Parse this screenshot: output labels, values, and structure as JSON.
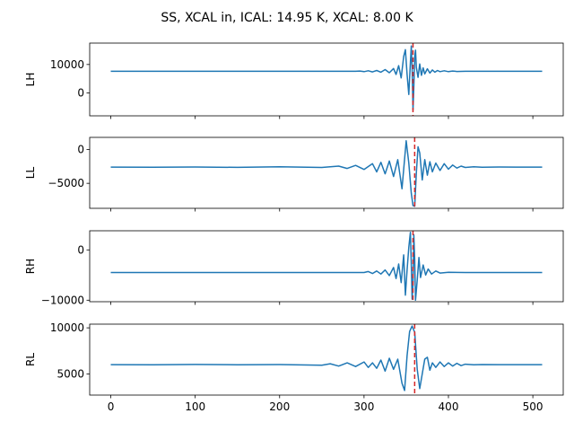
{
  "figure": {
    "title": "SS, XCAL in, ICAL: 14.95 K, XCAL: 8.00 K"
  },
  "chart_data": [
    {
      "type": "line",
      "ylabel": "LH",
      "xlim": [
        -25,
        536
      ],
      "ylim": [
        -8000,
        17500
      ],
      "yticks": [
        0,
        10000
      ],
      "show_xticklabels": false,
      "baseline": 7600,
      "vline_x": 358,
      "line_color": "#1f77b4",
      "vline_color": "#d62728",
      "x": [
        0,
        50,
        100,
        150,
        200,
        250,
        290,
        295,
        300,
        305,
        310,
        315,
        320,
        325,
        330,
        335,
        338,
        341,
        344,
        347,
        349,
        351,
        353,
        355,
        356,
        357,
        358,
        359,
        360,
        361,
        362,
        364,
        366,
        368,
        370,
        372,
        375,
        378,
        381,
        384,
        387,
        390,
        395,
        400,
        405,
        410,
        420,
        440,
        480,
        511
      ],
      "y": [
        7600,
        7600,
        7600,
        7600,
        7600,
        7600,
        7600,
        7700,
        7500,
        7800,
        7400,
        7900,
        7300,
        8200,
        7100,
        8600,
        6500,
        9600,
        5300,
        12800,
        15200,
        6500,
        -500,
        10800,
        16500,
        8500,
        -6000,
        2000,
        13000,
        15000,
        9000,
        5500,
        10200,
        6200,
        8800,
        6700,
        8500,
        7000,
        8100,
        7300,
        7900,
        7500,
        7800,
        7500,
        7700,
        7550,
        7600,
        7600,
        7600,
        7600
      ]
    },
    {
      "type": "line",
      "ylabel": "LL",
      "xlim": [
        -25,
        536
      ],
      "ylim": [
        -8700,
        1800
      ],
      "yticks": [
        -5000,
        0
      ],
      "show_xticklabels": false,
      "baseline": -2600,
      "vline_x": 360,
      "line_color": "#1f77b4",
      "vline_color": "#d62728",
      "x": [
        0,
        50,
        100,
        150,
        200,
        250,
        270,
        280,
        290,
        300,
        310,
        315,
        320,
        325,
        330,
        335,
        340,
        345,
        350,
        353,
        356,
        358,
        360,
        362,
        364,
        366,
        369,
        372,
        375,
        378,
        381,
        385,
        390,
        395,
        400,
        405,
        410,
        415,
        420,
        430,
        440,
        460,
        480,
        511
      ],
      "y": [
        -2600,
        -2620,
        -2580,
        -2640,
        -2560,
        -2650,
        -2450,
        -2800,
        -2350,
        -2950,
        -2100,
        -3300,
        -1900,
        -3600,
        -1700,
        -4000,
        -1500,
        -5800,
        1300,
        -2000,
        -6500,
        -8300,
        -8400,
        -3500,
        400,
        -500,
        -4500,
        -1500,
        -3800,
        -1800,
        -3300,
        -2000,
        -3100,
        -2100,
        -2900,
        -2300,
        -2750,
        -2450,
        -2650,
        -2550,
        -2620,
        -2580,
        -2600,
        -2600
      ]
    },
    {
      "type": "line",
      "ylabel": "RH",
      "xlim": [
        -25,
        536
      ],
      "ylim": [
        -10300,
        3800
      ],
      "yticks": [
        -10000,
        0
      ],
      "show_xticklabels": false,
      "baseline": -4500,
      "vline_x": 358,
      "line_color": "#1f77b4",
      "vline_color": "#d62728",
      "x": [
        0,
        50,
        100,
        150,
        200,
        250,
        300,
        305,
        310,
        315,
        320,
        325,
        330,
        335,
        338,
        341,
        344,
        347,
        349,
        351,
        353,
        355,
        356,
        357,
        358,
        359,
        360,
        361,
        363,
        365,
        367,
        370,
        373,
        376,
        380,
        385,
        390,
        400,
        420,
        460,
        511
      ],
      "y": [
        -4500,
        -4500,
        -4500,
        -4500,
        -4500,
        -4500,
        -4500,
        -4300,
        -4700,
        -4200,
        -4800,
        -4000,
        -5100,
        -3500,
        -5700,
        -2800,
        -6500,
        -1000,
        -9000,
        -4000,
        500,
        3500,
        -3000,
        -9800,
        -7000,
        3000,
        -2000,
        -10000,
        -6000,
        -1500,
        -5500,
        -3000,
        -5000,
        -3800,
        -4800,
        -4200,
        -4600,
        -4450,
        -4500,
        -4500,
        -4500
      ]
    },
    {
      "type": "line",
      "ylabel": "RL",
      "xlim": [
        -25,
        536
      ],
      "ylim": [
        2700,
        10400
      ],
      "yticks": [
        5000,
        10000
      ],
      "show_xticklabels": true,
      "xticks": [
        0,
        100,
        200,
        300,
        400,
        500
      ],
      "baseline": 6000,
      "vline_x": 360,
      "line_color": "#1f77b4",
      "vline_color": "#d62728",
      "x": [
        0,
        50,
        100,
        150,
        200,
        250,
        260,
        270,
        280,
        290,
        300,
        305,
        310,
        315,
        320,
        325,
        330,
        335,
        340,
        345,
        348,
        351,
        354,
        357,
        360,
        363,
        366,
        369,
        372,
        375,
        378,
        381,
        385,
        390,
        395,
        400,
        405,
        410,
        415,
        420,
        430,
        440,
        460,
        480,
        511
      ],
      "y": [
        6000,
        5980,
        6020,
        5990,
        6010,
        5950,
        6100,
        5850,
        6200,
        5800,
        6300,
        5700,
        6200,
        5600,
        6500,
        5300,
        6700,
        5500,
        6600,
        4000,
        3200,
        7000,
        9600,
        10200,
        9500,
        5500,
        3400,
        5000,
        6600,
        6800,
        5400,
        6200,
        5700,
        6300,
        5800,
        6200,
        5850,
        6150,
        5900,
        6050,
        5980,
        6010,
        6000,
        6000,
        6000
      ]
    }
  ]
}
